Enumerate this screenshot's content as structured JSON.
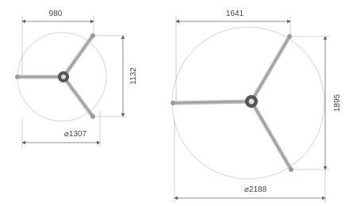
{
  "drawings": [
    {
      "width": "980",
      "height": "1132",
      "diameter": "⌀1307"
    },
    {
      "width": "1641",
      "height": "1895",
      "diameter": "⌀2188"
    }
  ]
}
